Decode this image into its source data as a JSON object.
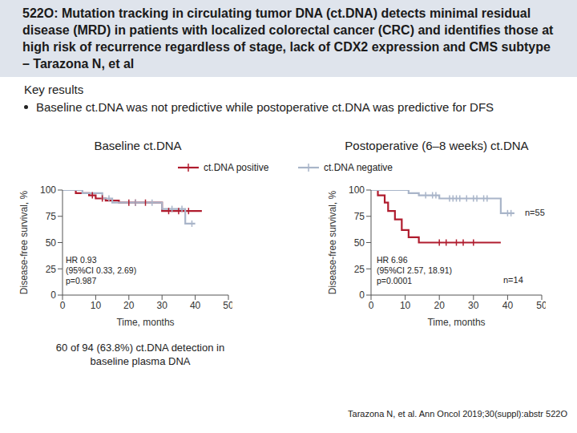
{
  "title": "522O: Mutation tracking in circulating tumor DNA (ct.DNA) detects minimal residual disease (MRD) in patients with localized colorectal cancer (CRC) and identifies those at high risk of recurrence regardless of stage, lack of CDX2 expression and CMS subtype – Tarazona N, et al",
  "section": "Key results",
  "bullet": "Baseline ct.DNA was not predictive while postoperative ct.DNA was predictive for DFS",
  "note": "60 of 94 (63.8%) ct.DNA detection in baseline plasma DNA",
  "citation": "Tarazona N, et al. Ann Oncol 2019;30(suppl):abstr 522O",
  "chart_data": [
    {
      "type": "line",
      "title": "Baseline ct.DNA",
      "x_label": "Time, months",
      "y_label": "Disease-free survival, %",
      "xlim": [
        0,
        50
      ],
      "xticks": [
        0,
        10,
        20,
        30,
        40,
        50
      ],
      "ylim": [
        0,
        100
      ],
      "yticks": [
        0,
        25,
        50,
        75,
        100
      ],
      "line_style": "step",
      "marker": "censor",
      "annotations": [
        "HR 0.93",
        "(95%CI 0.33, 2.69)",
        "p=0.987"
      ],
      "series": [
        {
          "name": "ct.DNA positive",
          "color": "#b01c2e",
          "x": [
            0,
            4,
            8,
            10,
            13,
            17,
            30,
            42
          ],
          "values": [
            100,
            97,
            95,
            92,
            90,
            88,
            80,
            80
          ],
          "censored_x": [
            9,
            12,
            20,
            22,
            25,
            32,
            35,
            38
          ],
          "censored_y": [
            95,
            92,
            88,
            88,
            88,
            80,
            80,
            80
          ]
        },
        {
          "name": "ct.DNA negative",
          "color": "#a9b5c9",
          "x": [
            0,
            6,
            12,
            15,
            30,
            37,
            40
          ],
          "values": [
            100,
            97,
            92,
            88,
            82,
            68,
            68
          ],
          "censored_x": [
            14,
            22,
            27,
            33,
            36,
            39
          ],
          "censored_y": [
            92,
            88,
            88,
            82,
            82,
            68
          ]
        }
      ]
    },
    {
      "type": "line",
      "title": "Postoperative (6–8 weeks) ct.DNA",
      "x_label": "Time, months",
      "y_label": "Disease-free survival, %",
      "xlim": [
        0,
        50
      ],
      "xticks": [
        0,
        10,
        20,
        30,
        40,
        50
      ],
      "ylim": [
        0,
        100
      ],
      "yticks": [
        0,
        25,
        50,
        75,
        100
      ],
      "line_style": "step",
      "marker": "censor",
      "annotations": [
        "HR 6.96",
        "(95%CI 2.57, 18.91)",
        "p=0.0001"
      ],
      "series": [
        {
          "name": "ct.DNA positive",
          "color": "#b01c2e",
          "label": "n=14",
          "x": [
            0,
            2,
            4,
            5,
            7,
            9,
            11,
            14,
            38
          ],
          "values": [
            100,
            95,
            88,
            80,
            72,
            62,
            55,
            50,
            50
          ],
          "censored_x": [
            20,
            22,
            25,
            27,
            30
          ],
          "censored_y": [
            50,
            50,
            50,
            50,
            50
          ]
        },
        {
          "name": "ct.DNA negative",
          "color": "#a9b5c9",
          "label": "n=55",
          "x": [
            0,
            11,
            14,
            20,
            38,
            42
          ],
          "values": [
            100,
            97,
            95,
            92,
            78,
            78
          ],
          "censored_x": [
            16,
            18,
            19,
            23,
            24,
            25,
            26,
            28,
            30,
            31,
            33,
            34,
            40,
            41
          ],
          "censored_y": [
            95,
            95,
            95,
            92,
            92,
            92,
            92,
            92,
            92,
            92,
            92,
            92,
            78,
            78
          ]
        }
      ]
    }
  ]
}
